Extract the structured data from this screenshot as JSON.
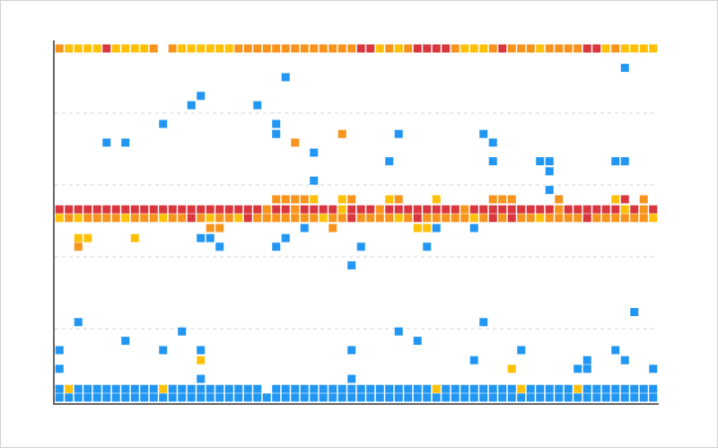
{
  "chart_data": {
    "type": "scatter",
    "xlim": [
      -0.5,
      63.5
    ],
    "ylim": [
      0,
      5
    ],
    "yticks": [
      1,
      2,
      3,
      4
    ],
    "grid": true,
    "series": [
      {
        "color": "#2196f3",
        "x": [
          0,
          1,
          2,
          3,
          4,
          5,
          6,
          7,
          8,
          9,
          10,
          11,
          12,
          13,
          14,
          15,
          16,
          17,
          18,
          19,
          20,
          21,
          22,
          23,
          24,
          25,
          26,
          27,
          28,
          29,
          30,
          31,
          32,
          33,
          34,
          35,
          36,
          37,
          38,
          39,
          40,
          41,
          42,
          43,
          44,
          45,
          46,
          47,
          48,
          49,
          50,
          51,
          52,
          53,
          54,
          55,
          56,
          57,
          58,
          59,
          60,
          61,
          62,
          63
        ],
        "values": [
          0.04,
          0.04,
          0.04,
          0.04,
          0.04,
          0.04,
          0.04,
          0.04,
          0.04,
          0.04,
          0.04,
          0.04,
          0.04,
          0.04,
          0.04,
          0.04,
          0.04,
          0.04,
          0.04,
          0.04,
          0.04,
          0.04,
          0.04,
          0.04,
          0.04,
          0.04,
          0.04,
          0.04,
          0.04,
          0.04,
          0.04,
          0.04,
          0.04,
          0.04,
          0.04,
          0.04,
          0.04,
          0.04,
          0.04,
          0.04,
          0.04,
          0.04,
          0.04,
          0.04,
          0.04,
          0.04,
          0.04,
          0.04,
          0.04,
          0.04,
          0.04,
          0.04,
          0.04,
          0.04,
          0.04,
          0.04,
          0.04,
          0.04,
          0.04,
          0.04,
          0.04,
          0.04,
          0.04,
          0.04
        ]
      },
      {
        "color": "#2196f3",
        "x": [
          0,
          2,
          3,
          4,
          5,
          6,
          7,
          8,
          9,
          10,
          12,
          13,
          14,
          15,
          16,
          17,
          18,
          19,
          20,
          21,
          23,
          24,
          25,
          26,
          27,
          28,
          29,
          30,
          31,
          32,
          33,
          34,
          35,
          36,
          37,
          38,
          39,
          41,
          42,
          43,
          44,
          45,
          46,
          47,
          48,
          50,
          51,
          52,
          53,
          54,
          56,
          57,
          58,
          59,
          60,
          61,
          62,
          63
        ],
        "values": [
          0.16,
          0.16,
          0.16,
          0.16,
          0.16,
          0.16,
          0.16,
          0.16,
          0.16,
          0.16,
          0.16,
          0.16,
          0.16,
          0.16,
          0.16,
          0.16,
          0.16,
          0.16,
          0.16,
          0.16,
          0.16,
          0.16,
          0.16,
          0.16,
          0.16,
          0.16,
          0.16,
          0.16,
          0.16,
          0.16,
          0.16,
          0.16,
          0.16,
          0.16,
          0.16,
          0.16,
          0.16,
          0.16,
          0.16,
          0.16,
          0.16,
          0.16,
          0.16,
          0.16,
          0.16,
          0.16,
          0.16,
          0.16,
          0.16,
          0.16,
          0.16,
          0.16,
          0.16,
          0.16,
          0.16,
          0.16,
          0.16,
          0.16
        ]
      },
      {
        "color": "#ffc107",
        "x": [
          1,
          11,
          40,
          49,
          55
        ],
        "values": [
          0.16,
          0.16,
          0.16,
          0.16,
          0.16
        ]
      },
      {
        "color": "#2196f3",
        "x": [
          24,
          60,
          15,
          14,
          21,
          11,
          23,
          23,
          5,
          7,
          36,
          45,
          46,
          27,
          35,
          46,
          51,
          52,
          59,
          60,
          52,
          27,
          52,
          15,
          16,
          17,
          23,
          24,
          26,
          40,
          44,
          32,
          39,
          31,
          2,
          61,
          36,
          45,
          13,
          7,
          38,
          0,
          11,
          15,
          31,
          49,
          59,
          44,
          56,
          60,
          0,
          55,
          56,
          63,
          15,
          31
        ],
        "values": [
          4.5,
          4.63,
          4.24,
          4.11,
          4.11,
          3.85,
          3.85,
          3.71,
          3.59,
          3.59,
          3.71,
          3.71,
          3.59,
          3.45,
          3.33,
          3.33,
          3.33,
          3.33,
          3.33,
          3.33,
          3.19,
          3.06,
          2.93,
          2.26,
          2.26,
          2.14,
          2.14,
          2.26,
          2.4,
          2.4,
          2.4,
          2.14,
          2.14,
          1.88,
          1.09,
          1.23,
          0.96,
          1.09,
          0.96,
          0.83,
          0.83,
          0.7,
          0.7,
          0.7,
          0.7,
          0.7,
          0.7,
          0.56,
          0.56,
          0.56,
          0.44,
          0.44,
          0.44,
          0.44,
          0.3,
          0.3
        ]
      },
      {
        "color": "#d9363e",
        "x": [
          0,
          1,
          2,
          3,
          4,
          5,
          6,
          7,
          8,
          9,
          10,
          11,
          12,
          13,
          14,
          15,
          16,
          17,
          18,
          19,
          20,
          21,
          23,
          24,
          26,
          27,
          28,
          29,
          31,
          32,
          33,
          35,
          36,
          37,
          38,
          39,
          40,
          41,
          42,
          44,
          45,
          46,
          47,
          48,
          49,
          50,
          51,
          52,
          54,
          55,
          56,
          57,
          58,
          59,
          61,
          63
        ],
        "values": [
          2.66,
          2.66,
          2.66,
          2.66,
          2.66,
          2.66,
          2.66,
          2.66,
          2.66,
          2.66,
          2.66,
          2.66,
          2.66,
          2.66,
          2.66,
          2.66,
          2.66,
          2.66,
          2.66,
          2.66,
          2.66,
          2.66,
          2.66,
          2.66,
          2.66,
          2.66,
          2.66,
          2.66,
          2.66,
          2.66,
          2.66,
          2.66,
          2.66,
          2.66,
          2.66,
          2.66,
          2.66,
          2.66,
          2.66,
          2.66,
          2.66,
          2.66,
          2.66,
          2.66,
          2.66,
          2.66,
          2.66,
          2.66,
          2.66,
          2.66,
          2.66,
          2.66,
          2.66,
          2.66,
          2.66,
          2.66
        ]
      },
      {
        "color": "#f7941d",
        "x": [
          22,
          25,
          34,
          43,
          53,
          62
        ],
        "values": [
          2.66,
          2.66,
          2.66,
          2.66,
          2.66,
          2.66
        ]
      },
      {
        "color": "#ffc107",
        "x": [
          30,
          60
        ],
        "values": [
          2.66,
          2.66
        ]
      },
      {
        "color": "#f7941d",
        "x": [
          1,
          3,
          4,
          5,
          6,
          8,
          9,
          10,
          12,
          13,
          15,
          17,
          18,
          21,
          22,
          23,
          24,
          25,
          26,
          27,
          29,
          30,
          32,
          33,
          34,
          35,
          37,
          39,
          40,
          41,
          42,
          43,
          45,
          47,
          49,
          50,
          52,
          53,
          54,
          55,
          57,
          58,
          59,
          60,
          61,
          62
        ],
        "values": [
          2.54,
          2.54,
          2.54,
          2.54,
          2.54,
          2.54,
          2.54,
          2.54,
          2.54,
          2.54,
          2.54,
          2.54,
          2.54,
          2.54,
          2.54,
          2.54,
          2.54,
          2.54,
          2.54,
          2.54,
          2.54,
          2.54,
          2.54,
          2.54,
          2.54,
          2.54,
          2.54,
          2.54,
          2.54,
          2.54,
          2.54,
          2.54,
          2.54,
          2.54,
          2.54,
          2.54,
          2.54,
          2.54,
          2.54,
          2.54,
          2.54,
          2.54,
          2.54,
          2.54,
          2.54,
          2.54
        ]
      },
      {
        "color": "#ffc107",
        "x": [
          0,
          2,
          7,
          11,
          16,
          19,
          28,
          36,
          44,
          51,
          63
        ],
        "values": [
          2.54,
          2.54,
          2.54,
          2.54,
          2.54,
          2.54,
          2.54,
          2.54,
          2.54,
          2.54,
          2.54
        ]
      },
      {
        "color": "#d9363e",
        "x": [
          14,
          20,
          31,
          38,
          46,
          48,
          56
        ],
        "values": [
          2.54,
          2.54,
          2.54,
          2.54,
          2.54,
          2.54,
          2.54
        ]
      },
      {
        "color": "#f7941d",
        "x": [
          23,
          24,
          25,
          26,
          31,
          36,
          46,
          47,
          48,
          53,
          62
        ],
        "values": [
          2.8,
          2.8,
          2.8,
          2.8,
          2.8,
          2.8,
          2.8,
          2.8,
          2.8,
          2.8,
          2.8
        ]
      },
      {
        "color": "#ffc107",
        "x": [
          27,
          30,
          35,
          40,
          59
        ],
        "values": [
          2.8,
          2.8,
          2.8,
          2.8,
          2.8
        ]
      },
      {
        "color": "#d9363e",
        "x": [
          60
        ],
        "values": [
          2.8
        ]
      },
      {
        "color": "#f7941d",
        "x": [
          30,
          25,
          2,
          17,
          29,
          16
        ],
        "values": [
          3.71,
          3.59,
          2.14,
          2.4,
          2.4,
          2.4
        ]
      },
      {
        "color": "#ffc107",
        "x": [
          2,
          3,
          8,
          38,
          39,
          15,
          48
        ],
        "values": [
          2.26,
          2.26,
          2.26,
          2.4,
          2.4,
          0.56,
          0.44
        ]
      },
      {
        "color": "#f7941d",
        "x": [
          0,
          10,
          12,
          19,
          20,
          21,
          22,
          23,
          24,
          25,
          26,
          27,
          28,
          29,
          30,
          31,
          35,
          37,
          42,
          46,
          48,
          49,
          50,
          52,
          53,
          54,
          55,
          59
        ],
        "values": [
          4.9,
          4.9,
          4.9,
          4.9,
          4.9,
          4.9,
          4.9,
          4.9,
          4.9,
          4.9,
          4.9,
          4.9,
          4.9,
          4.9,
          4.9,
          4.9,
          4.9,
          4.9,
          4.9,
          4.9,
          4.9,
          4.9,
          4.9,
          4.9,
          4.9,
          4.9,
          4.9,
          4.9
        ]
      },
      {
        "color": "#ffc107",
        "x": [
          1,
          2,
          3,
          4,
          6,
          7,
          8,
          9,
          13,
          14,
          15,
          16,
          17,
          18,
          34,
          36,
          43,
          44,
          45,
          51,
          58,
          60,
          61,
          62,
          63
        ],
        "values": [
          4.9,
          4.9,
          4.9,
          4.9,
          4.9,
          4.9,
          4.9,
          4.9,
          4.9,
          4.9,
          4.9,
          4.9,
          4.9,
          4.9,
          4.9,
          4.9,
          4.9,
          4.9,
          4.9,
          4.9,
          4.9,
          4.9,
          4.9,
          4.9,
          4.9
        ]
      },
      {
        "color": "#d9363e",
        "x": [
          5,
          32,
          33,
          38,
          39,
          40,
          41,
          47,
          56,
          57
        ],
        "values": [
          4.9,
          4.9,
          4.9,
          4.9,
          4.9,
          4.9,
          4.9,
          4.9,
          4.9,
          4.9
        ]
      }
    ]
  }
}
